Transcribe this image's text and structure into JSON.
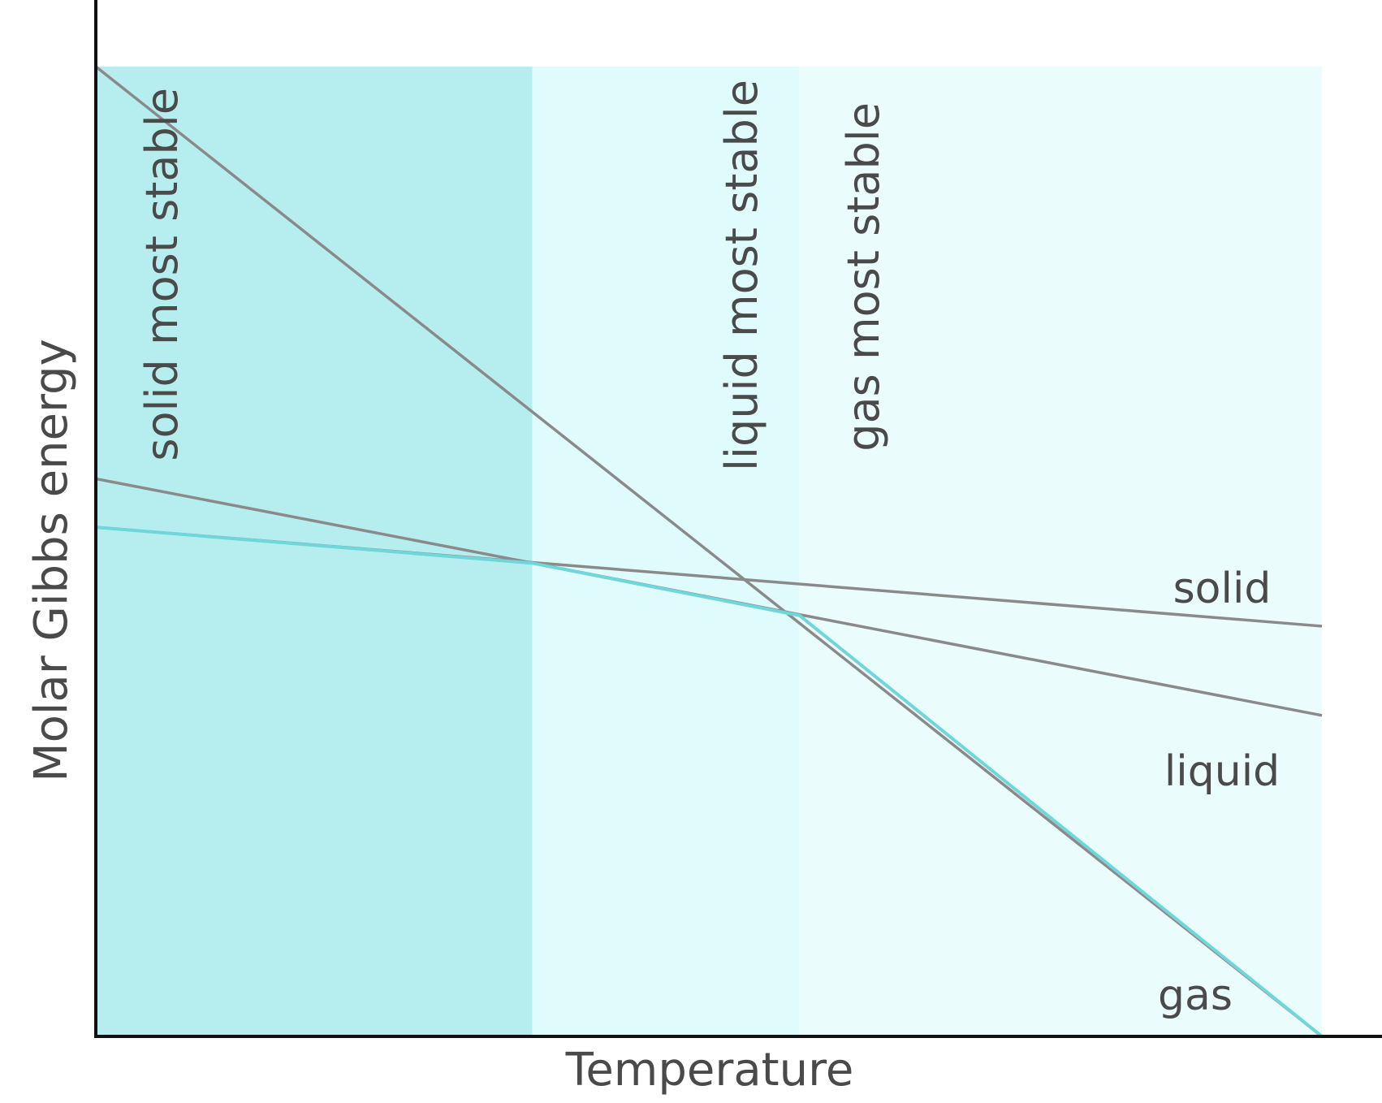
{
  "chart_data": {
    "type": "line",
    "title": "",
    "xlabel": "Temperature",
    "ylabel": "Molar Gibbs energy",
    "axis_ticks_shown": false,
    "grid": false,
    "legend": "none; series labelled directly at right end",
    "x_range": [
      0,
      10
    ],
    "y_range": [
      0,
      10
    ],
    "regions": [
      {
        "label": "solid most stable",
        "x_start": 0,
        "x_end": 3.56,
        "color": "#b6eeef"
      },
      {
        "label": "liquid most stable",
        "x_start": 3.56,
        "x_end": 5.74,
        "color": "#dffbfc"
      },
      {
        "label": "gas most stable",
        "x_start": 5.74,
        "x_end": 10,
        "color": "#ebfcfd"
      }
    ],
    "series": [
      {
        "name": "solid",
        "color": "#8a8a8a",
        "x": [
          0,
          10
        ],
        "y": [
          5.25,
          4.23
        ]
      },
      {
        "name": "liquid",
        "color": "#8a8a8a",
        "x": [
          0,
          10
        ],
        "y": [
          5.75,
          3.31
        ]
      },
      {
        "name": "gas",
        "color": "#8a8a8a",
        "x": [
          0,
          10
        ],
        "y": [
          10.0,
          0.0
        ]
      }
    ],
    "stable_envelope": {
      "color": "#6fd6da",
      "x": [
        0,
        3.56,
        5.74,
        10
      ],
      "y": [
        5.25,
        4.88,
        4.34,
        0.0
      ]
    }
  },
  "colors": {
    "axis": "#111111",
    "text": "#4a4a4a"
  }
}
